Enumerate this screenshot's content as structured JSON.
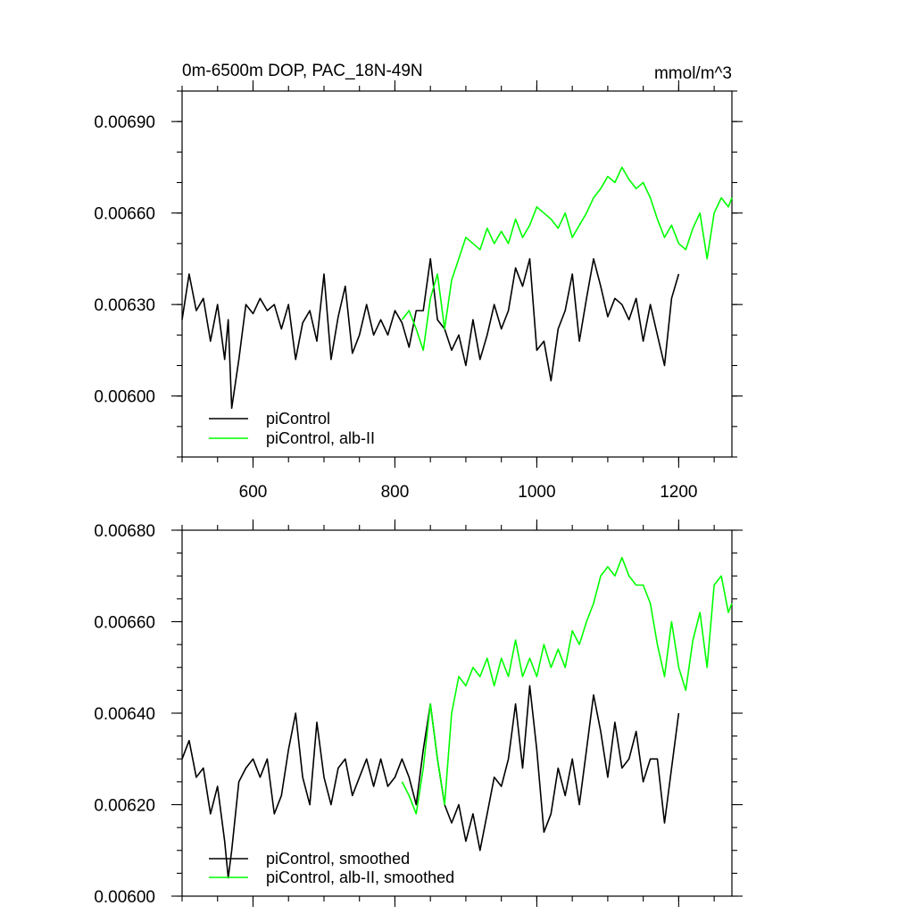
{
  "chart_data": [
    {
      "type": "line",
      "title": "0m-6500m DOP, PAC_18N-49N",
      "units": "mmol/m^3",
      "xlim": [
        500,
        1275
      ],
      "ylim": [
        0.0058,
        0.007
      ],
      "x_ticks": [
        "600",
        "800",
        "1000",
        "1200"
      ],
      "y_ticks": [
        "0.00600",
        "0.00630",
        "0.00660",
        "0.00690"
      ],
      "grid": false,
      "legend_position": "bottom-left",
      "series": [
        {
          "name": "piControl",
          "color": "#000000",
          "x": [
            500,
            510,
            520,
            530,
            540,
            550,
            560,
            565,
            570,
            580,
            590,
            600,
            610,
            620,
            630,
            640,
            650,
            660,
            670,
            680,
            690,
            700,
            710,
            720,
            730,
            740,
            750,
            760,
            770,
            780,
            790,
            800,
            810,
            820,
            830,
            840,
            850,
            860,
            870,
            880,
            890,
            900,
            910,
            920,
            930,
            940,
            950,
            960,
            970,
            980,
            990,
            1000,
            1010,
            1020,
            1030,
            1040,
            1050,
            1060,
            1070,
            1080,
            1090,
            1100,
            1110,
            1120,
            1130,
            1140,
            1150,
            1160,
            1170,
            1180,
            1190,
            1200
          ],
          "y": [
            0.00625,
            0.0064,
            0.00628,
            0.00632,
            0.00618,
            0.0063,
            0.00612,
            0.00625,
            0.00596,
            0.00612,
            0.0063,
            0.00627,
            0.00632,
            0.00628,
            0.0063,
            0.00622,
            0.0063,
            0.00612,
            0.00624,
            0.00628,
            0.00618,
            0.0064,
            0.00612,
            0.00626,
            0.00636,
            0.00614,
            0.0062,
            0.0063,
            0.0062,
            0.00625,
            0.0062,
            0.00628,
            0.00624,
            0.00616,
            0.00628,
            0.00628,
            0.00645,
            0.00625,
            0.00622,
            0.00615,
            0.0062,
            0.0061,
            0.00625,
            0.00612,
            0.0062,
            0.0063,
            0.00622,
            0.00628,
            0.00642,
            0.00636,
            0.00645,
            0.00615,
            0.00618,
            0.00605,
            0.00622,
            0.00628,
            0.0064,
            0.00618,
            0.00632,
            0.00645,
            0.00636,
            0.00626,
            0.00632,
            0.0063,
            0.00625,
            0.00632,
            0.00618,
            0.0063,
            0.0062,
            0.0061,
            0.00632,
            0.0064
          ]
        },
        {
          "name": "piControl, alb-II",
          "color": "#00ff00",
          "x": [
            810,
            820,
            830,
            840,
            850,
            860,
            870,
            880,
            890,
            900,
            910,
            920,
            930,
            940,
            950,
            960,
            970,
            980,
            990,
            1000,
            1010,
            1020,
            1030,
            1040,
            1050,
            1060,
            1070,
            1080,
            1090,
            1100,
            1110,
            1120,
            1130,
            1140,
            1150,
            1160,
            1170,
            1180,
            1190,
            1200,
            1210,
            1220,
            1230,
            1240,
            1250,
            1260,
            1270,
            1275
          ],
          "y": [
            0.00625,
            0.00628,
            0.00622,
            0.00615,
            0.00632,
            0.0064,
            0.00622,
            0.00638,
            0.00645,
            0.00652,
            0.0065,
            0.00648,
            0.00655,
            0.0065,
            0.00654,
            0.0065,
            0.00658,
            0.00652,
            0.00656,
            0.00662,
            0.0066,
            0.00658,
            0.00655,
            0.0066,
            0.00652,
            0.00656,
            0.0066,
            0.00665,
            0.00668,
            0.00672,
            0.0067,
            0.00675,
            0.00671,
            0.00668,
            0.0067,
            0.00665,
            0.00658,
            0.00652,
            0.00656,
            0.0065,
            0.00648,
            0.00655,
            0.0066,
            0.00645,
            0.0066,
            0.00665,
            0.00662,
            0.00665
          ]
        }
      ]
    },
    {
      "type": "line",
      "xlim": [
        500,
        1275
      ],
      "ylim": [
        0.006,
        0.0068
      ],
      "x_ticks": [
        "",
        "",
        "",
        ""
      ],
      "y_ticks": [
        "0.00600",
        "0.00620",
        "0.00640",
        "0.00660",
        "0.00680"
      ],
      "grid": false,
      "legend_position": "bottom-left",
      "series": [
        {
          "name": "piControl, smoothed",
          "color": "#000000",
          "x": [
            500,
            510,
            520,
            530,
            540,
            550,
            560,
            565,
            570,
            580,
            590,
            600,
            610,
            620,
            630,
            640,
            650,
            660,
            670,
            680,
            690,
            700,
            710,
            720,
            730,
            740,
            750,
            760,
            770,
            780,
            790,
            800,
            810,
            820,
            830,
            840,
            850,
            860,
            870,
            880,
            890,
            900,
            910,
            920,
            930,
            940,
            950,
            960,
            970,
            980,
            990,
            1000,
            1010,
            1020,
            1030,
            1040,
            1050,
            1060,
            1070,
            1080,
            1090,
            1100,
            1110,
            1120,
            1130,
            1140,
            1150,
            1160,
            1170,
            1180,
            1190,
            1200
          ],
          "y": [
            0.0063,
            0.00634,
            0.00626,
            0.00628,
            0.00618,
            0.00624,
            0.00612,
            0.00604,
            0.0061,
            0.00625,
            0.00628,
            0.0063,
            0.00626,
            0.0063,
            0.00618,
            0.00622,
            0.00632,
            0.0064,
            0.00626,
            0.0062,
            0.00638,
            0.00626,
            0.0062,
            0.00628,
            0.0063,
            0.00622,
            0.00626,
            0.0063,
            0.00624,
            0.0063,
            0.00624,
            0.00626,
            0.0063,
            0.00626,
            0.0062,
            0.00632,
            0.00642,
            0.0063,
            0.0062,
            0.00616,
            0.0062,
            0.00612,
            0.00618,
            0.0061,
            0.00618,
            0.00626,
            0.00624,
            0.0063,
            0.00642,
            0.00628,
            0.00646,
            0.00632,
            0.00614,
            0.00618,
            0.00628,
            0.00622,
            0.0063,
            0.0062,
            0.00632,
            0.00644,
            0.00636,
            0.00626,
            0.00638,
            0.00628,
            0.0063,
            0.00636,
            0.00625,
            0.0063,
            0.0063,
            0.00616,
            0.00628,
            0.0064
          ]
        },
        {
          "name": "piControl, alb-II, smoothed",
          "color": "#00ff00",
          "x": [
            810,
            820,
            830,
            840,
            850,
            860,
            870,
            880,
            890,
            900,
            910,
            920,
            930,
            940,
            950,
            960,
            970,
            980,
            990,
            1000,
            1010,
            1020,
            1030,
            1040,
            1050,
            1060,
            1070,
            1080,
            1090,
            1100,
            1110,
            1120,
            1130,
            1140,
            1150,
            1160,
            1170,
            1180,
            1190,
            1200,
            1210,
            1220,
            1230,
            1240,
            1250,
            1260,
            1270,
            1275
          ],
          "y": [
            0.00625,
            0.00622,
            0.00618,
            0.00628,
            0.00642,
            0.0063,
            0.0062,
            0.0064,
            0.00648,
            0.00646,
            0.0065,
            0.00648,
            0.00652,
            0.00646,
            0.00652,
            0.00648,
            0.00656,
            0.00648,
            0.00652,
            0.00648,
            0.00655,
            0.0065,
            0.00654,
            0.0065,
            0.00658,
            0.00655,
            0.0066,
            0.00664,
            0.0067,
            0.00672,
            0.0067,
            0.00674,
            0.0067,
            0.00668,
            0.00668,
            0.00664,
            0.00655,
            0.00648,
            0.0066,
            0.0065,
            0.00645,
            0.00656,
            0.00662,
            0.0065,
            0.00668,
            0.0067,
            0.00662,
            0.00664
          ]
        }
      ]
    }
  ]
}
